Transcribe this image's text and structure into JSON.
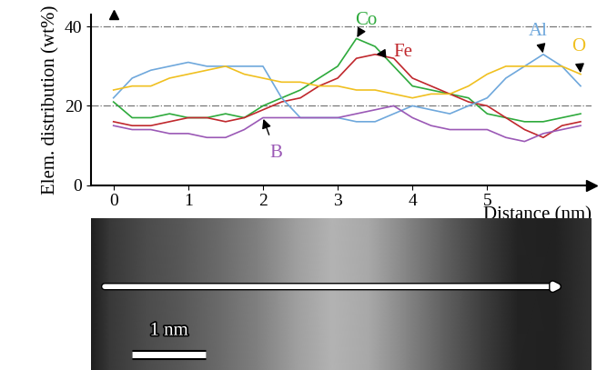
{
  "chart_data": {
    "type": "line",
    "x_label": "Distance (nm)",
    "y_label": "Elem. distribution (wt%)",
    "x": [
      0,
      0.25,
      0.5,
      0.75,
      1,
      1.25,
      1.5,
      1.75,
      2,
      2.25,
      2.5,
      2.75,
      3,
      3.25,
      3.5,
      3.75,
      4,
      4.25,
      4.5,
      4.75,
      5,
      5.25,
      5.5,
      5.75,
      6,
      6.25
    ],
    "series": [
      {
        "name": "Co",
        "color": "#2eaa3c",
        "values": [
          21,
          17,
          17,
          18,
          17,
          17,
          18,
          17,
          20,
          22,
          24,
          27,
          30,
          37,
          35,
          30,
          25,
          24,
          23,
          22,
          18,
          17,
          16,
          16,
          17,
          18
        ]
      },
      {
        "name": "Fe",
        "color": "#c0282d",
        "values": [
          16,
          15,
          15,
          16,
          17,
          17,
          16,
          17,
          19,
          21,
          22,
          25,
          27,
          32,
          33,
          32,
          27,
          25,
          23,
          21,
          20,
          17,
          14,
          12,
          15,
          16
        ]
      },
      {
        "name": "Al",
        "color": "#6fa8dc",
        "values": [
          22,
          27,
          29,
          30,
          31,
          30,
          30,
          30,
          30,
          22,
          17,
          17,
          17,
          16,
          16,
          18,
          20,
          19,
          18,
          20,
          22,
          27,
          30,
          33,
          30,
          25
        ]
      },
      {
        "name": "O",
        "color": "#f0c020",
        "values": [
          24,
          25,
          25,
          27,
          28,
          29,
          30,
          28,
          27,
          26,
          26,
          25,
          25,
          24,
          24,
          23,
          22,
          23,
          23,
          25,
          28,
          30,
          30,
          30,
          30,
          28
        ]
      },
      {
        "name": "B",
        "color": "#9b59b6",
        "values": [
          15,
          14,
          14,
          13,
          13,
          12,
          12,
          14,
          17,
          17,
          17,
          17,
          17,
          18,
          19,
          20,
          17,
          15,
          14,
          14,
          14,
          12,
          11,
          13,
          14,
          15
        ]
      }
    ],
    "xlim": [
      -0.3,
      6.4
    ],
    "xticks": [
      0,
      1,
      2,
      3,
      4,
      5
    ],
    "ylim": [
      0,
      43
    ],
    "yticks": [
      0,
      20,
      40
    ],
    "grid": true,
    "image": {
      "x": [
        -0.25,
        0,
        0.5,
        1,
        1.5,
        2,
        2.5,
        3,
        3.5,
        4,
        4.5,
        5,
        5.5,
        6,
        6.5
      ],
      "intensity": [
        0.12,
        0.22,
        0.3,
        0.35,
        0.42,
        0.5,
        0.62,
        0.7,
        0.66,
        0.52,
        0.38,
        0.25,
        0.14,
        0.13,
        0.2
      ]
    },
    "scale_bar": {
      "length": 1,
      "label": "1 nm"
    }
  }
}
